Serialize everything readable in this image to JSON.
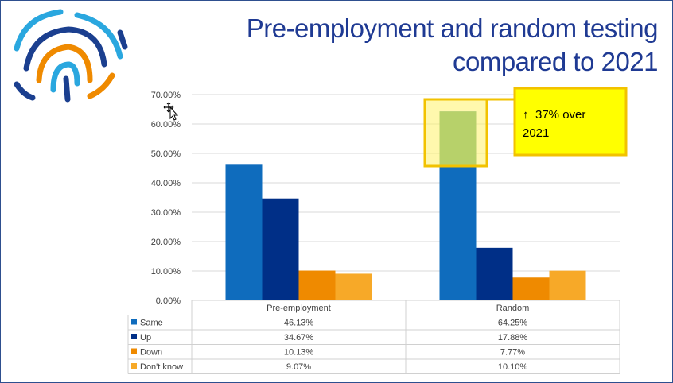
{
  "slide": {
    "title_line1": "Pre-employment and random testing",
    "title_line2": "compared to 2021"
  },
  "colors": {
    "same": "#0f6cbd",
    "up": "#002f87",
    "down": "#ef8a00",
    "dont_know": "#f7a928",
    "title": "#1f3a93",
    "highlight_fill": "#fff89a",
    "highlight_border": "#f2c200",
    "callout_fill": "#ffff00"
  },
  "logo": {
    "name": "fingerprint-logo"
  },
  "callout": {
    "arrow": "↑",
    "line1": "37% over",
    "line2": "2021"
  },
  "chart_data": {
    "type": "bar",
    "categories": [
      "Pre-employment",
      "Random"
    ],
    "series": [
      {
        "name": "Same",
        "values": [
          46.13,
          64.25
        ],
        "labels": [
          "46.13%",
          "64.25%"
        ]
      },
      {
        "name": "Up",
        "values": [
          34.67,
          17.88
        ],
        "labels": [
          "34.67%",
          "17.88%"
        ]
      },
      {
        "name": "Down",
        "values": [
          10.13,
          7.77
        ],
        "labels": [
          "10.13%",
          "7.77%"
        ]
      },
      {
        "name": "Don't know",
        "values": [
          9.07,
          10.1
        ],
        "labels": [
          "9.07%",
          "10.10%"
        ]
      }
    ],
    "ylim": [
      0,
      70
    ],
    "yticks": [
      "0.00%",
      "10.00%",
      "20.00%",
      "30.00%",
      "40.00%",
      "50.00%",
      "60.00%",
      "70.00%"
    ],
    "grid": true,
    "legend": "data-table"
  }
}
